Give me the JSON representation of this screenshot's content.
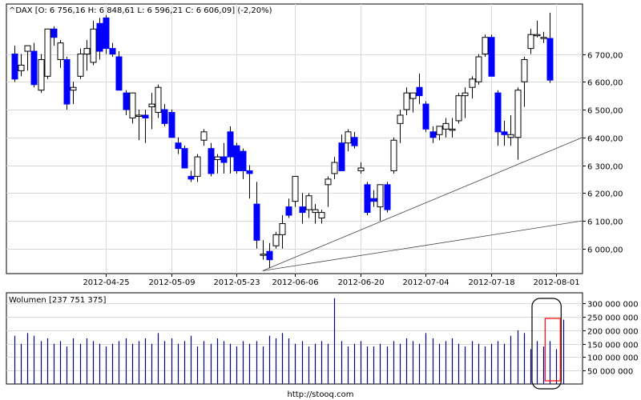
{
  "chart_data": [
    {
      "type": "candlestick",
      "title": "^DAX [O: 6 756,16  H: 6 848,61  L: 6 596,21  C: 6 606,09] (-2,20%)",
      "ylim": [
        5910,
        6880
      ],
      "y_ticks": [
        {
          "value": 6000,
          "label": "6 000,00"
        },
        {
          "value": 6100,
          "label": "6 100,00"
        },
        {
          "value": 6200,
          "label": "6 200,00"
        },
        {
          "value": 6300,
          "label": "6 300,00"
        },
        {
          "value": 6400,
          "label": "6 400,00"
        },
        {
          "value": 6500,
          "label": "6 500,00"
        },
        {
          "value": 6600,
          "label": "6 600,00"
        },
        {
          "value": 6700,
          "label": "6 700,00"
        }
      ],
      "x_tick_labels": [
        {
          "index": 14,
          "label": "2012-04-25"
        },
        {
          "index": 24,
          "label": "2012-05-09"
        },
        {
          "index": 34,
          "label": "2012-05-23"
        },
        {
          "index": 43,
          "label": "2012-06-06"
        },
        {
          "index": 53,
          "label": "2012-06-20"
        },
        {
          "index": 63,
          "label": "2012-07-04"
        },
        {
          "index": 73,
          "label": "2012-07-18"
        },
        {
          "index": 83,
          "label": "2012-08-01"
        }
      ],
      "grid": true,
      "candles": [
        {
          "o": 6700,
          "h": 6730,
          "l": 6600,
          "c": 6610
        },
        {
          "o": 6640,
          "h": 6700,
          "l": 6620,
          "c": 6660
        },
        {
          "o": 6710,
          "h": 6730,
          "l": 6640,
          "c": 6730
        },
        {
          "o": 6710,
          "h": 6740,
          "l": 6580,
          "c": 6590
        },
        {
          "o": 6570,
          "h": 6700,
          "l": 6560,
          "c": 6680
        },
        {
          "o": 6620,
          "h": 6790,
          "l": 6610,
          "c": 6790
        },
        {
          "o": 6790,
          "h": 6800,
          "l": 6730,
          "c": 6760
        },
        {
          "o": 6680,
          "h": 6750,
          "l": 6650,
          "c": 6740
        },
        {
          "o": 6680,
          "h": 6690,
          "l": 6500,
          "c": 6520
        },
        {
          "o": 6570,
          "h": 6600,
          "l": 6520,
          "c": 6580
        },
        {
          "o": 6620,
          "h": 6720,
          "l": 6610,
          "c": 6700
        },
        {
          "o": 6700,
          "h": 6750,
          "l": 6640,
          "c": 6720
        },
        {
          "o": 6670,
          "h": 6820,
          "l": 6660,
          "c": 6790
        },
        {
          "o": 6810,
          "h": 6830,
          "l": 6680,
          "c": 6710
        },
        {
          "o": 6830,
          "h": 6840,
          "l": 6700,
          "c": 6720
        },
        {
          "o": 6720,
          "h": 6740,
          "l": 6690,
          "c": 6700
        },
        {
          "o": 6690,
          "h": 6710,
          "l": 6570,
          "c": 6570
        },
        {
          "o": 6560,
          "h": 6570,
          "l": 6480,
          "c": 6500
        },
        {
          "o": 6470,
          "h": 6560,
          "l": 6450,
          "c": 6560
        },
        {
          "o": 6480,
          "h": 6500,
          "l": 6390,
          "c": 6480
        },
        {
          "o": 6480,
          "h": 6500,
          "l": 6380,
          "c": 6470
        },
        {
          "o": 6510,
          "h": 6560,
          "l": 6430,
          "c": 6520
        },
        {
          "o": 6490,
          "h": 6590,
          "l": 6470,
          "c": 6580
        },
        {
          "o": 6500,
          "h": 6520,
          "l": 6440,
          "c": 6450
        },
        {
          "o": 6490,
          "h": 6500,
          "l": 6400,
          "c": 6400
        },
        {
          "o": 6380,
          "h": 6400,
          "l": 6340,
          "c": 6360
        },
        {
          "o": 6360,
          "h": 6370,
          "l": 6290,
          "c": 6290
        },
        {
          "o": 6260,
          "h": 6280,
          "l": 6240,
          "c": 6250
        },
        {
          "o": 6260,
          "h": 6340,
          "l": 6240,
          "c": 6330
        },
        {
          "o": 6390,
          "h": 6430,
          "l": 6370,
          "c": 6420
        },
        {
          "o": 6360,
          "h": 6380,
          "l": 6260,
          "c": 6270
        },
        {
          "o": 6320,
          "h": 6340,
          "l": 6270,
          "c": 6330
        },
        {
          "o": 6330,
          "h": 6380,
          "l": 6270,
          "c": 6310
        },
        {
          "o": 6420,
          "h": 6440,
          "l": 6270,
          "c": 6330
        },
        {
          "o": 6370,
          "h": 6380,
          "l": 6270,
          "c": 6280
        },
        {
          "o": 6350,
          "h": 6360,
          "l": 6250,
          "c": 6280
        },
        {
          "o": 6280,
          "h": 6300,
          "l": 6180,
          "c": 6270
        },
        {
          "o": 6160,
          "h": 6240,
          "l": 6000,
          "c": 6030
        },
        {
          "o": 5980,
          "h": 6030,
          "l": 5960,
          "c": 5980
        },
        {
          "o": 5990,
          "h": 6020,
          "l": 5930,
          "c": 5960
        },
        {
          "o": 6010,
          "h": 6060,
          "l": 6000,
          "c": 6050
        },
        {
          "o": 6050,
          "h": 6120,
          "l": 6000,
          "c": 6090
        },
        {
          "o": 6150,
          "h": 6180,
          "l": 6110,
          "c": 6120
        },
        {
          "o": 6170,
          "h": 6260,
          "l": 6150,
          "c": 6260
        },
        {
          "o": 6150,
          "h": 6200,
          "l": 6090,
          "c": 6130
        },
        {
          "o": 6140,
          "h": 6200,
          "l": 6110,
          "c": 6190
        },
        {
          "o": 6130,
          "h": 6160,
          "l": 6090,
          "c": 6140
        },
        {
          "o": 6110,
          "h": 6140,
          "l": 6090,
          "c": 6130
        },
        {
          "o": 6230,
          "h": 6260,
          "l": 6150,
          "c": 6250
        },
        {
          "o": 6270,
          "h": 6330,
          "l": 6250,
          "c": 6310
        },
        {
          "o": 6380,
          "h": 6410,
          "l": 6280,
          "c": 6280
        },
        {
          "o": 6380,
          "h": 6430,
          "l": 6350,
          "c": 6420
        },
        {
          "o": 6400,
          "h": 6420,
          "l": 6360,
          "c": 6370
        },
        {
          "o": 6280,
          "h": 6310,
          "l": 6270,
          "c": 6290
        },
        {
          "o": 6230,
          "h": 6240,
          "l": 6120,
          "c": 6130
        },
        {
          "o": 6180,
          "h": 6210,
          "l": 6150,
          "c": 6170
        },
        {
          "o": 6150,
          "h": 6230,
          "l": 6100,
          "c": 6230
        },
        {
          "o": 6230,
          "h": 6240,
          "l": 6130,
          "c": 6140
        },
        {
          "o": 6280,
          "h": 6400,
          "l": 6270,
          "c": 6390
        },
        {
          "o": 6450,
          "h": 6500,
          "l": 6380,
          "c": 6480
        },
        {
          "o": 6500,
          "h": 6580,
          "l": 6480,
          "c": 6560
        },
        {
          "o": 6540,
          "h": 6560,
          "l": 6490,
          "c": 6560
        },
        {
          "o": 6580,
          "h": 6630,
          "l": 6520,
          "c": 6550
        },
        {
          "o": 6520,
          "h": 6530,
          "l": 6420,
          "c": 6430
        },
        {
          "o": 6420,
          "h": 6440,
          "l": 6380,
          "c": 6400
        },
        {
          "o": 6410,
          "h": 6440,
          "l": 6390,
          "c": 6440
        },
        {
          "o": 6430,
          "h": 6470,
          "l": 6400,
          "c": 6450
        },
        {
          "o": 6430,
          "h": 6470,
          "l": 6400,
          "c": 6430
        },
        {
          "o": 6460,
          "h": 6560,
          "l": 6450,
          "c": 6550
        },
        {
          "o": 6550,
          "h": 6580,
          "l": 6470,
          "c": 6560
        },
        {
          "o": 6580,
          "h": 6620,
          "l": 6540,
          "c": 6610
        },
        {
          "o": 6600,
          "h": 6700,
          "l": 6590,
          "c": 6690
        },
        {
          "o": 6700,
          "h": 6770,
          "l": 6690,
          "c": 6760
        },
        {
          "o": 6760,
          "h": 6770,
          "l": 6620,
          "c": 6620
        },
        {
          "o": 6560,
          "h": 6570,
          "l": 6370,
          "c": 6420
        },
        {
          "o": 6420,
          "h": 6460,
          "l": 6370,
          "c": 6410
        },
        {
          "o": 6400,
          "h": 6480,
          "l": 6370,
          "c": 6410
        },
        {
          "o": 6400,
          "h": 6580,
          "l": 6320,
          "c": 6570
        },
        {
          "o": 6600,
          "h": 6690,
          "l": 6510,
          "c": 6680
        },
        {
          "o": 6720,
          "h": 6790,
          "l": 6700,
          "c": 6770
        },
        {
          "o": 6770,
          "h": 6820,
          "l": 6760,
          "c": 6770
        },
        {
          "o": 6760,
          "h": 6780,
          "l": 6740,
          "c": 6760
        },
        {
          "o": 6756.16,
          "h": 6848.61,
          "l": 6596.21,
          "c": 6606.09
        }
      ],
      "trendlines": [
        {
          "from": {
            "index": 38,
            "value": 5920
          },
          "to": {
            "index": 86,
            "value": 6400
          }
        },
        {
          "from": {
            "index": 38,
            "value": 5920
          },
          "to": {
            "index": 86,
            "value": 6100
          }
        }
      ]
    },
    {
      "type": "bar",
      "title": "Wolumen [237 751 375]",
      "ylim": [
        0,
        340000000
      ],
      "y_ticks": [
        {
          "value": 50000000,
          "label": "50 000 000"
        },
        {
          "value": 100000000,
          "label": "100 000 000"
        },
        {
          "value": 150000000,
          "label": "150 000 000"
        },
        {
          "value": 200000000,
          "label": "200 000 000"
        },
        {
          "value": 250000000,
          "label": "250 000 000"
        },
        {
          "value": 300000000,
          "label": "300 000 000"
        }
      ],
      "values": [
        180000000,
        150000000,
        190000000,
        180000000,
        160000000,
        170000000,
        150000000,
        160000000,
        140000000,
        170000000,
        150000000,
        170000000,
        160000000,
        150000000,
        140000000,
        150000000,
        160000000,
        170000000,
        150000000,
        160000000,
        170000000,
        150000000,
        190000000,
        160000000,
        170000000,
        150000000,
        160000000,
        180000000,
        140000000,
        160000000,
        150000000,
        170000000,
        160000000,
        150000000,
        140000000,
        160000000,
        150000000,
        160000000,
        140000000,
        180000000,
        170000000,
        190000000,
        170000000,
        150000000,
        160000000,
        140000000,
        150000000,
        160000000,
        150000000,
        320000000,
        160000000,
        140000000,
        150000000,
        160000000,
        140000000,
        140000000,
        150000000,
        140000000,
        160000000,
        150000000,
        170000000,
        160000000,
        150000000,
        190000000,
        170000000,
        150000000,
        160000000,
        170000000,
        150000000,
        140000000,
        160000000,
        150000000,
        140000000,
        150000000,
        160000000,
        150000000,
        180000000,
        200000000,
        190000000,
        130000000,
        160000000,
        140000000,
        160000000,
        130000000,
        240000000
      ]
    }
  ],
  "annotations": {
    "black_box_label": "",
    "red_box_label": ""
  },
  "footer": {
    "url": "http://stooq.com"
  },
  "colors": {
    "down": "#0000ff",
    "up": "#ffffff",
    "outline": "#000000",
    "grid": "#d9d9d9",
    "volume": "#00008b",
    "black_box": "#000000",
    "red_box": "#ff0000"
  }
}
